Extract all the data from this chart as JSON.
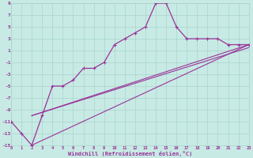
{
  "bg_color": "#c8eae4",
  "grid_color": "#a8d4cc",
  "line_color": "#993399",
  "xlim": [
    0,
    23
  ],
  "ylim": [
    -15,
    9
  ],
  "yticks": [
    -15,
    -13,
    -11,
    -9,
    -7,
    -5,
    -3,
    -1,
    1,
    3,
    5,
    7,
    9
  ],
  "xticks": [
    0,
    1,
    2,
    3,
    4,
    5,
    6,
    7,
    8,
    9,
    10,
    11,
    12,
    13,
    14,
    15,
    16,
    17,
    18,
    19,
    20,
    21,
    22,
    23
  ],
  "xlabel": "Windchill (Refroidissement éolien,°C)",
  "line1_x": [
    0,
    1,
    2,
    3,
    4,
    5,
    6,
    7,
    8,
    9,
    10,
    11,
    12,
    13,
    14,
    15,
    16,
    17,
    18,
    19,
    20,
    21,
    22,
    23
  ],
  "line1_y": [
    -11,
    -13,
    -15,
    -10,
    -5,
    -5,
    -4,
    -2,
    -2,
    -1,
    2,
    3,
    4,
    5,
    9,
    9,
    5,
    3,
    3,
    3,
    3,
    2,
    2,
    2
  ],
  "line2_x": [
    2,
    23
  ],
  "line2_y": [
    -10,
    2
  ],
  "line3_x": [
    2,
    23
  ],
  "line3_y": [
    -10,
    2
  ],
  "line4_x": [
    2,
    23
  ],
  "line4_y": [
    -15,
    2
  ]
}
